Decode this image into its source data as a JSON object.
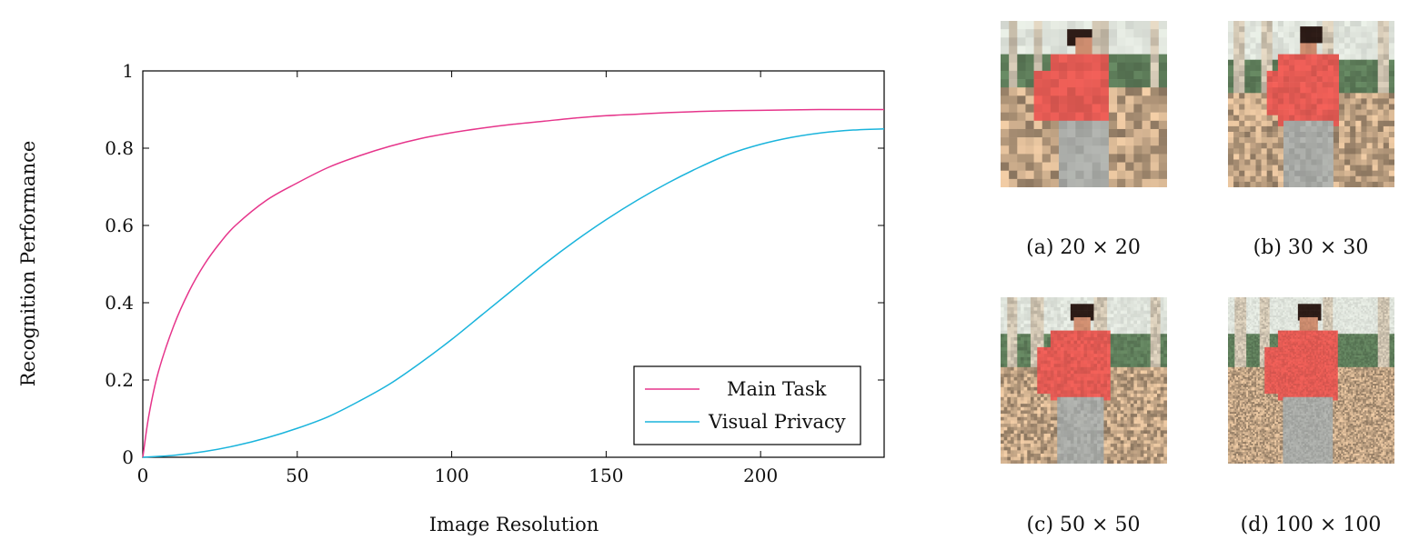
{
  "chart_data": {
    "type": "line",
    "xlabel": "Image Resolution",
    "ylabel": "Recognition Performance",
    "xlim": [
      0,
      240
    ],
    "ylim": [
      0,
      1
    ],
    "x_ticks": [
      0,
      50,
      100,
      150,
      200
    ],
    "x_tick_labels": [
      "0",
      "50",
      "100",
      "150",
      "200"
    ],
    "y_ticks": [
      0,
      0.2,
      0.4,
      0.6,
      0.8,
      1
    ],
    "y_tick_labels": [
      "0",
      "0.2",
      "0.4",
      "0.6",
      "0.8",
      "1"
    ],
    "grid": false,
    "legend": "bottom-right",
    "series": [
      {
        "name": "Main Task",
        "color": "#e6358b",
        "x": [
          0,
          2,
          5,
          10,
          15,
          20,
          25,
          30,
          40,
          50,
          60,
          70,
          80,
          90,
          100,
          110,
          120,
          130,
          140,
          150,
          160,
          170,
          180,
          190,
          200,
          210,
          220,
          230,
          240
        ],
        "y": [
          0,
          0.11,
          0.22,
          0.34,
          0.43,
          0.5,
          0.555,
          0.6,
          0.665,
          0.71,
          0.75,
          0.78,
          0.805,
          0.825,
          0.84,
          0.852,
          0.862,
          0.87,
          0.878,
          0.884,
          0.888,
          0.892,
          0.895,
          0.897,
          0.898,
          0.899,
          0.9,
          0.9,
          0.9
        ]
      },
      {
        "name": "Visual Privacy",
        "color": "#1ab4dc",
        "x": [
          0,
          10,
          20,
          30,
          40,
          50,
          60,
          70,
          80,
          90,
          100,
          110,
          120,
          130,
          140,
          150,
          160,
          170,
          180,
          190,
          200,
          210,
          220,
          230,
          240
        ],
        "y": [
          0,
          0.005,
          0.015,
          0.03,
          0.05,
          0.075,
          0.105,
          0.145,
          0.19,
          0.245,
          0.305,
          0.37,
          0.435,
          0.5,
          0.56,
          0.615,
          0.665,
          0.71,
          0.75,
          0.785,
          0.81,
          0.828,
          0.84,
          0.847,
          0.85
        ]
      }
    ]
  },
  "figures": [
    {
      "caption": "(a) 20 × 20",
      "grid": 20
    },
    {
      "caption": "(b) 30 × 30",
      "grid": 30
    },
    {
      "caption": "(c) 50 × 50",
      "grid": 50
    },
    {
      "caption": "(d) 100 × 100",
      "grid": 100
    }
  ],
  "colors": {
    "wall": "#cfc4b1",
    "window": "#5e7d5a",
    "sky": "#dfe4dc",
    "shirt": "#e35a53",
    "pants": "#a8aaa6",
    "skin": "#c98a6d",
    "hair": "#2c1b16",
    "sofa": "#bfa283"
  }
}
